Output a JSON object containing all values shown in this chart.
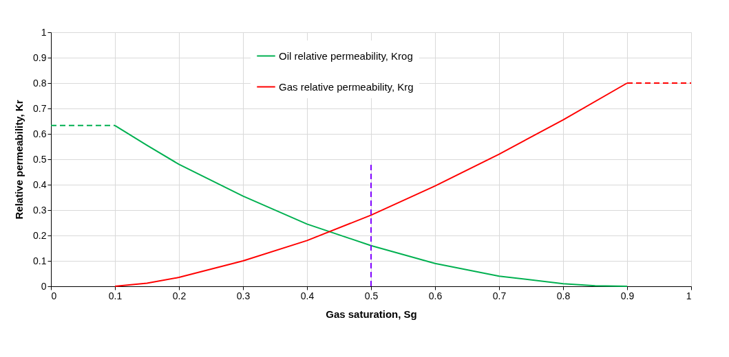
{
  "chart_data": {
    "type": "line",
    "xlabel": "Gas saturation, Sg",
    "ylabel": "Relative permeability, Kr",
    "xlim": [
      0,
      1
    ],
    "ylim": [
      0,
      1
    ],
    "xticks": [
      0,
      0.1,
      0.2,
      0.3,
      0.4,
      0.5,
      0.6,
      0.7,
      0.8,
      0.9,
      1
    ],
    "yticks": [
      0,
      0.1,
      0.2,
      0.3,
      0.4,
      0.5,
      0.6,
      0.7,
      0.8,
      0.9,
      1
    ],
    "grid": true,
    "legend": "top",
    "marker": "none",
    "series": [
      {
        "name": "Oil relative permeability, Krog",
        "color": "#00b050",
        "line_style": "solid",
        "x": [
          0.1,
          0.15,
          0.2,
          0.3,
          0.4,
          0.5,
          0.6,
          0.7,
          0.8,
          0.85,
          0.9
        ],
        "values": [
          0.633,
          0.555,
          0.48,
          0.355,
          0.245,
          0.16,
          0.09,
          0.04,
          0.01,
          0.002,
          0
        ]
      },
      {
        "name": "Gas relative permeability, Krg",
        "color": "#ff0000",
        "line_style": "solid",
        "x": [
          0.1,
          0.15,
          0.2,
          0.3,
          0.4,
          0.5,
          0.6,
          0.7,
          0.8,
          0.9
        ],
        "values": [
          0,
          0.012,
          0.035,
          0.1,
          0.18,
          0.28,
          0.395,
          0.52,
          0.655,
          0.8
        ]
      },
      {
        "color": "#00b050",
        "line_style": "dashed",
        "x": [
          0,
          0.1
        ],
        "values": [
          0.633,
          0.633
        ]
      },
      {
        "color": "#ff0000",
        "line_style": "dashed",
        "x": [
          0.9,
          1
        ],
        "values": [
          0.8,
          0.8
        ]
      },
      {
        "color": "#7f00ff",
        "line_style": "dashed",
        "x": [
          0.5,
          0.5
        ],
        "values": [
          0,
          0.48
        ]
      }
    ]
  }
}
